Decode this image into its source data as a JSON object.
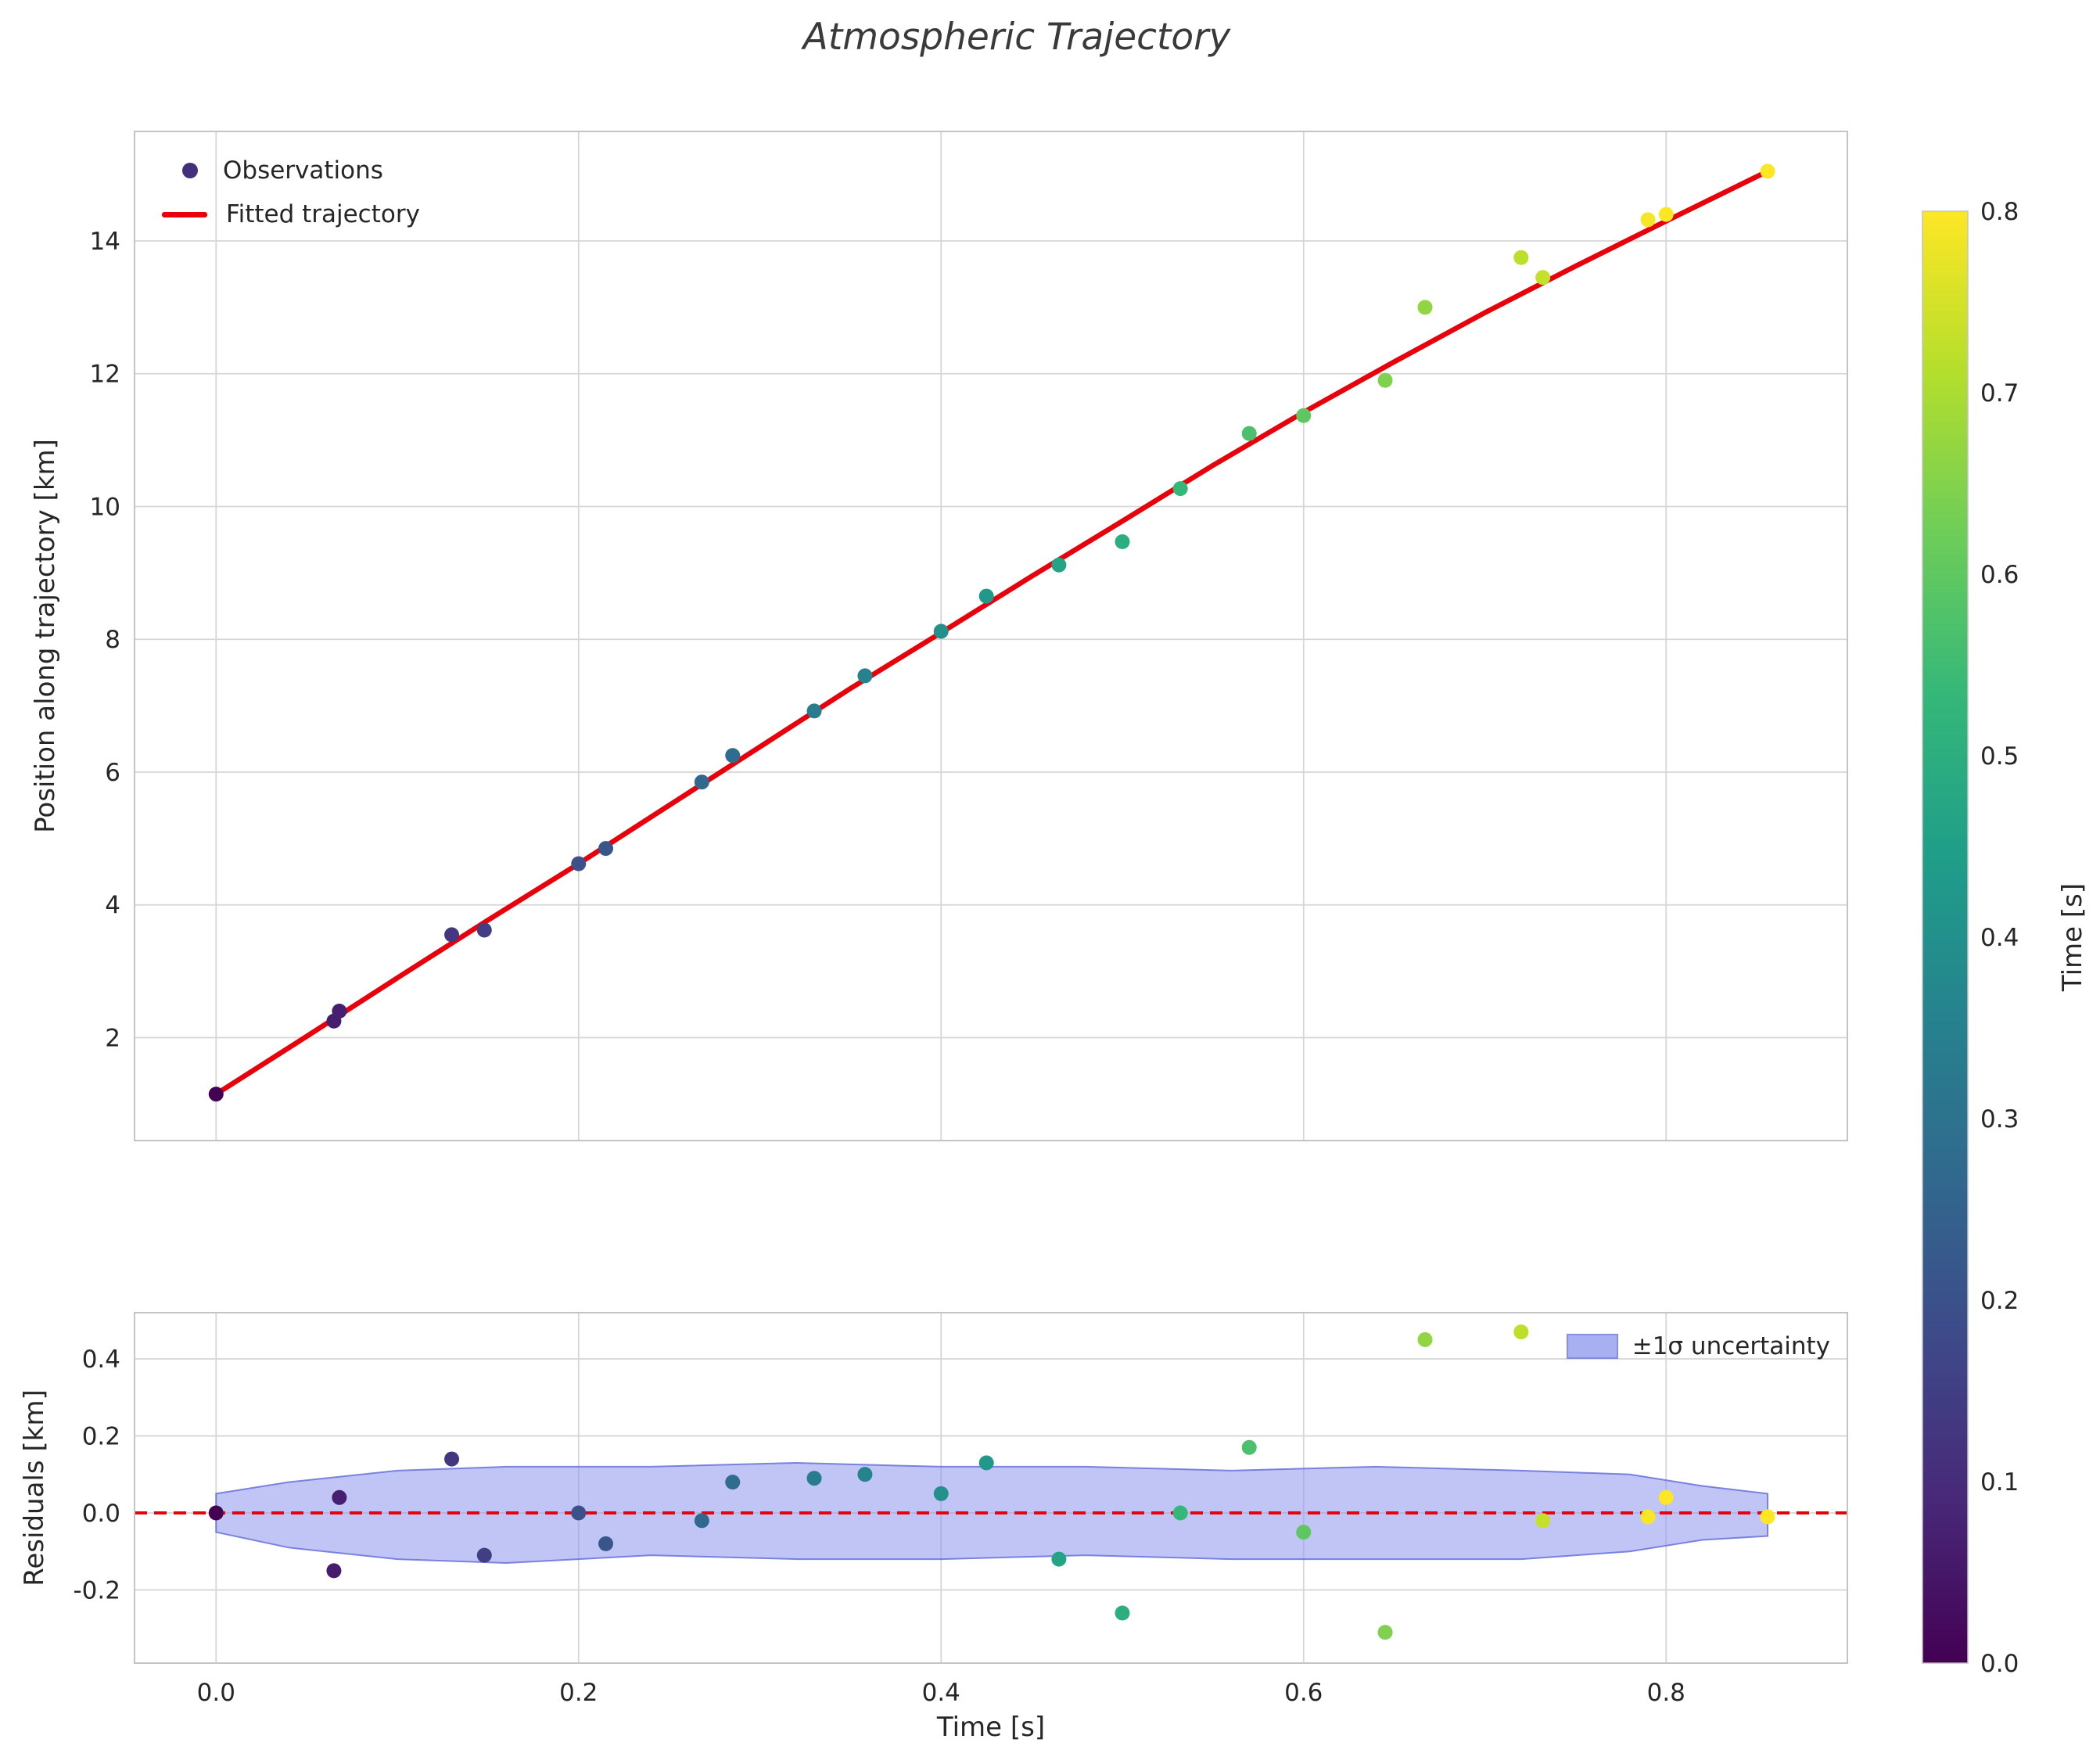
{
  "figure": {
    "title": "Atmospheric Trajectory"
  },
  "colors": {
    "fit_line": "#e8000b",
    "zero_line": "#e8000b",
    "grid": "#d6d6d6",
    "spine": "#c4c4c4",
    "text": "#262626",
    "title": "#3a3a3a",
    "band_fill": "#8d96ee",
    "band_edge": "#5f6ad8",
    "legend_marker": "#43307c"
  },
  "colorbar": {
    "label": "Time [s]",
    "vmin": 0.0,
    "vmax": 0.8,
    "ticks": [
      "0.0",
      "0.1",
      "0.2",
      "0.3",
      "0.4",
      "0.5",
      "0.6",
      "0.7",
      "0.8"
    ],
    "colormap": "viridis"
  },
  "chart_data": [
    {
      "type": "scatter",
      "title": "Atmospheric Trajectory",
      "xlabel": "",
      "ylabel": "Position along trajectory [km]",
      "xlim": [
        -0.045,
        0.9
      ],
      "ylim": [
        0.45,
        15.65
      ],
      "xticks": [
        "0.0",
        "0.2",
        "0.4",
        "0.6",
        "0.8"
      ],
      "yticks": [
        "2",
        "4",
        "6",
        "8",
        "10",
        "12",
        "14"
      ],
      "grid": true,
      "colormap": "viridis",
      "color_by": "t",
      "legend": [
        {
          "marker": "dot",
          "label": "Observations"
        },
        {
          "marker": "line",
          "label": "Fitted trajectory"
        }
      ],
      "points": [
        {
          "t": 0.0,
          "pos": 1.15
        },
        {
          "t": 0.065,
          "pos": 2.25
        },
        {
          "t": 0.068,
          "pos": 2.4
        },
        {
          "t": 0.13,
          "pos": 3.55
        },
        {
          "t": 0.148,
          "pos": 3.62
        },
        {
          "t": 0.2,
          "pos": 4.62
        },
        {
          "t": 0.215,
          "pos": 4.85
        },
        {
          "t": 0.268,
          "pos": 5.85
        },
        {
          "t": 0.285,
          "pos": 6.25
        },
        {
          "t": 0.33,
          "pos": 6.92
        },
        {
          "t": 0.358,
          "pos": 7.45
        },
        {
          "t": 0.4,
          "pos": 8.12
        },
        {
          "t": 0.425,
          "pos": 8.65
        },
        {
          "t": 0.465,
          "pos": 9.12
        },
        {
          "t": 0.5,
          "pos": 9.47
        },
        {
          "t": 0.532,
          "pos": 10.27
        },
        {
          "t": 0.57,
          "pos": 11.1
        },
        {
          "t": 0.6,
          "pos": 11.37
        },
        {
          "t": 0.645,
          "pos": 11.9
        },
        {
          "t": 0.667,
          "pos": 13.0
        },
        {
          "t": 0.72,
          "pos": 13.75
        },
        {
          "t": 0.732,
          "pos": 13.45
        },
        {
          "t": 0.79,
          "pos": 14.32
        },
        {
          "t": 0.8,
          "pos": 14.4
        },
        {
          "t": 0.856,
          "pos": 15.05
        }
      ],
      "fit_curve": {
        "name": "Fitted trajectory",
        "x": [
          0.0,
          0.05,
          0.1,
          0.15,
          0.2,
          0.25,
          0.3,
          0.35,
          0.4,
          0.45,
          0.5,
          0.55,
          0.6,
          0.65,
          0.7,
          0.75,
          0.8,
          0.856
        ],
        "y": [
          1.15,
          2.02,
          2.9,
          3.77,
          4.62,
          5.5,
          6.38,
          7.26,
          8.1,
          8.95,
          9.78,
          10.62,
          11.42,
          12.18,
          12.92,
          13.62,
          14.3,
          15.05
        ]
      }
    },
    {
      "type": "scatter",
      "title": "",
      "xlabel": "Time [s]",
      "ylabel": "Residuals [km]",
      "xlim": [
        -0.045,
        0.9
      ],
      "ylim": [
        -0.39,
        0.52
      ],
      "xticks": [
        "0.0",
        "0.2",
        "0.4",
        "0.6",
        "0.8"
      ],
      "yticks": [
        "-0.2",
        "0.0",
        "0.2",
        "0.4"
      ],
      "grid": true,
      "zero_line": 0.0,
      "points": [
        {
          "t": 0.0,
          "residual": 0.0
        },
        {
          "t": 0.065,
          "residual": -0.15
        },
        {
          "t": 0.068,
          "residual": 0.04
        },
        {
          "t": 0.13,
          "residual": 0.14
        },
        {
          "t": 0.148,
          "residual": -0.11
        },
        {
          "t": 0.2,
          "residual": 0.0
        },
        {
          "t": 0.215,
          "residual": -0.08
        },
        {
          "t": 0.268,
          "residual": -0.02
        },
        {
          "t": 0.285,
          "residual": 0.08
        },
        {
          "t": 0.33,
          "residual": 0.09
        },
        {
          "t": 0.358,
          "residual": 0.1
        },
        {
          "t": 0.4,
          "residual": 0.05
        },
        {
          "t": 0.425,
          "residual": 0.13
        },
        {
          "t": 0.465,
          "residual": -0.12
        },
        {
          "t": 0.5,
          "residual": -0.26
        },
        {
          "t": 0.532,
          "residual": 0.0
        },
        {
          "t": 0.57,
          "residual": 0.17
        },
        {
          "t": 0.6,
          "residual": -0.05
        },
        {
          "t": 0.645,
          "residual": -0.31
        },
        {
          "t": 0.667,
          "residual": 0.45
        },
        {
          "t": 0.72,
          "residual": 0.47
        },
        {
          "t": 0.732,
          "residual": -0.02
        },
        {
          "t": 0.79,
          "residual": -0.01
        },
        {
          "t": 0.8,
          "residual": 0.04
        },
        {
          "t": 0.856,
          "residual": -0.01
        }
      ],
      "band": {
        "label": "±1σ uncertainty",
        "t": [
          0.0,
          0.04,
          0.1,
          0.16,
          0.24,
          0.32,
          0.4,
          0.48,
          0.56,
          0.64,
          0.72,
          0.78,
          0.82,
          0.856
        ],
        "upper": [
          0.05,
          0.08,
          0.11,
          0.12,
          0.12,
          0.13,
          0.12,
          0.12,
          0.11,
          0.12,
          0.11,
          0.1,
          0.07,
          0.05
        ],
        "lower": [
          -0.05,
          -0.09,
          -0.12,
          -0.13,
          -0.11,
          -0.12,
          -0.12,
          -0.11,
          -0.12,
          -0.12,
          -0.12,
          -0.1,
          -0.07,
          -0.06
        ]
      }
    }
  ]
}
